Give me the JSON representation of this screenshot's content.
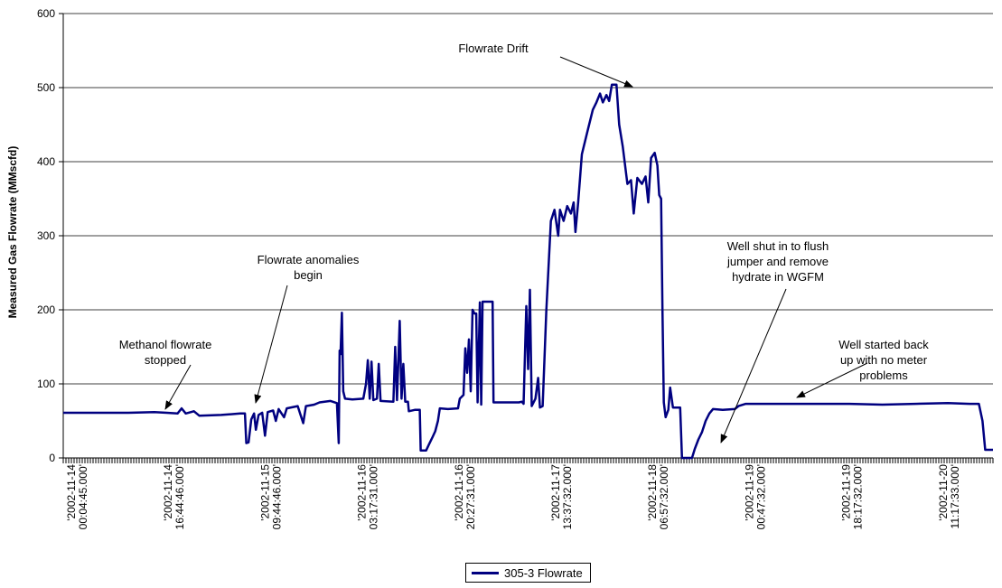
{
  "chart_data": {
    "type": "line",
    "title": "",
    "xlabel": "",
    "ylabel": "Measured Gas Flowrate (MMscfd)",
    "ylim": [
      0,
      600
    ],
    "yticks": [
      "0",
      "100",
      "200",
      "300",
      "400",
      "500",
      "600"
    ],
    "xlim": [
      "2002-11-14 00:04:45",
      "2002-11-21 02:15:00"
    ],
    "xtick_labels": [
      [
        "'2002-11-14",
        "00:04:45.000'"
      ],
      [
        "'2002-11-14",
        "16:44:46.000'"
      ],
      [
        "'2002-11-15",
        "09:44:46.000'"
      ],
      [
        "'2002-11-16",
        "03:17:31.000'"
      ],
      [
        "'2002-11-16",
        "20:27:31.000'"
      ],
      [
        "'2002-11-17",
        "13:37:32.000'"
      ],
      [
        "'2002-11-18",
        "06:57:32.000'"
      ],
      [
        "'2002-11-19",
        "00:47:32.000'"
      ],
      [
        "'2002-11-19",
        "18:17:32.000'"
      ],
      [
        "'2002-11-20",
        "11:17:33.000'"
      ]
    ],
    "grid": "horizontal",
    "legend": "bottom-center",
    "color": "#000080",
    "series": [
      {
        "name": "305-3 Flowrate",
        "points": [
          [
            "2002-11-14 00:04:45",
            61
          ],
          [
            "2002-11-14 06:00",
            61
          ],
          [
            "2002-11-14 12:00",
            61
          ],
          [
            "2002-11-14 16:44:46",
            62
          ],
          [
            "2002-11-14 19:00",
            61
          ],
          [
            "2002-11-14 21:00",
            60
          ],
          [
            "2002-11-14 21:45",
            67
          ],
          [
            "2002-11-14 22:30",
            60
          ],
          [
            "2002-11-15 00:00",
            63
          ],
          [
            "2002-11-15 01:00",
            57
          ],
          [
            "2002-11-15 05:00",
            58
          ],
          [
            "2002-11-15 08:30",
            60
          ],
          [
            "2002-11-15 09:20",
            60
          ],
          [
            "2002-11-15 09:35",
            20
          ],
          [
            "2002-11-15 10:00",
            21
          ],
          [
            "2002-11-15 10:30",
            52
          ],
          [
            "2002-11-15 11:00",
            60
          ],
          [
            "2002-11-15 11:20",
            38
          ],
          [
            "2002-11-15 11:50",
            58
          ],
          [
            "2002-11-15 12:30",
            61
          ],
          [
            "2002-11-15 13:00",
            30
          ],
          [
            "2002-11-15 13:30",
            62
          ],
          [
            "2002-11-15 14:30",
            64
          ],
          [
            "2002-11-15 15:00",
            50
          ],
          [
            "2002-11-15 15:30",
            66
          ],
          [
            "2002-11-15 16:30",
            55
          ],
          [
            "2002-11-15 17:00",
            67
          ],
          [
            "2002-11-15 19:00",
            70
          ],
          [
            "2002-11-15 20:00",
            47
          ],
          [
            "2002-11-15 20:30",
            70
          ],
          [
            "2002-11-15 22:00",
            72
          ],
          [
            "2002-11-15 23:00",
            75
          ],
          [
            "2002-11-16 01:00",
            77
          ],
          [
            "2002-11-16 02:10",
            74
          ],
          [
            "2002-11-16 02:30",
            20
          ],
          [
            "2002-11-16 02:40",
            145
          ],
          [
            "2002-11-16 02:50",
            140
          ],
          [
            "2002-11-16 03:05",
            196
          ],
          [
            "2002-11-16 03:20",
            90
          ],
          [
            "2002-11-16 03:40",
            80
          ],
          [
            "2002-11-16 05:00",
            79
          ],
          [
            "2002-11-16 07:00",
            80
          ],
          [
            "2002-11-16 07:30",
            100
          ],
          [
            "2002-11-16 07:50",
            132
          ],
          [
            "2002-11-16 08:10",
            80
          ],
          [
            "2002-11-16 08:30",
            130
          ],
          [
            "2002-11-16 08:50",
            78
          ],
          [
            "2002-11-16 09:30",
            80
          ],
          [
            "2002-11-16 09:50",
            127
          ],
          [
            "2002-11-16 10:10",
            77
          ],
          [
            "2002-11-16 12:30",
            76
          ],
          [
            "2002-11-16 12:50",
            150
          ],
          [
            "2002-11-16 13:10",
            78
          ],
          [
            "2002-11-16 13:40",
            185
          ],
          [
            "2002-11-16 14:00",
            80
          ],
          [
            "2002-11-16 14:20",
            127
          ],
          [
            "2002-11-16 14:40",
            76
          ],
          [
            "2002-11-16 15:10",
            76
          ],
          [
            "2002-11-16 15:20",
            63
          ],
          [
            "2002-11-16 16:30",
            65
          ],
          [
            "2002-11-16 17:20",
            65
          ],
          [
            "2002-11-16 17:30",
            10
          ],
          [
            "2002-11-16 18:30",
            10
          ],
          [
            "2002-11-16 19:00",
            18
          ],
          [
            "2002-11-16 19:40",
            28
          ],
          [
            "2002-11-16 20:10",
            36
          ],
          [
            "2002-11-16 20:40",
            50
          ],
          [
            "2002-11-16 21:00",
            67
          ],
          [
            "2002-11-16 22:30",
            66
          ],
          [
            "2002-11-17 00:20",
            67
          ],
          [
            "2002-11-17 00:40",
            80
          ],
          [
            "2002-11-17 01:20",
            85
          ],
          [
            "2002-11-17 01:40",
            148
          ],
          [
            "2002-11-17 02:00",
            115
          ],
          [
            "2002-11-17 02:20",
            160
          ],
          [
            "2002-11-17 02:40",
            90
          ],
          [
            "2002-11-17 03:00",
            200
          ],
          [
            "2002-11-17 03:20",
            195
          ],
          [
            "2002-11-17 03:40",
            195
          ],
          [
            "2002-11-17 03:55",
            75
          ],
          [
            "2002-11-17 04:20",
            210
          ],
          [
            "2002-11-17 04:35",
            72
          ],
          [
            "2002-11-17 04:50",
            211
          ],
          [
            "2002-11-17 06:40",
            211
          ],
          [
            "2002-11-17 06:50",
            75
          ],
          [
            "2002-11-17 09:00",
            75
          ],
          [
            "2002-11-17 11:30",
            75
          ],
          [
            "2002-11-17 12:00",
            76
          ],
          [
            "2002-11-17 12:20",
            73
          ],
          [
            "2002-11-17 12:50",
            205
          ],
          [
            "2002-11-17 13:10",
            120
          ],
          [
            "2002-11-17 13:30",
            227
          ],
          [
            "2002-11-17 13:50",
            70
          ],
          [
            "2002-11-17 14:30",
            80
          ],
          [
            "2002-11-17 15:00",
            108
          ],
          [
            "2002-11-17 15:20",
            68
          ],
          [
            "2002-11-17 15:50",
            70
          ],
          [
            "2002-11-17 16:30",
            200
          ],
          [
            "2002-11-17 17:20",
            320
          ],
          [
            "2002-11-17 18:00",
            335
          ],
          [
            "2002-11-17 18:40",
            300
          ],
          [
            "2002-11-17 19:00",
            335
          ],
          [
            "2002-11-17 19:40",
            320
          ],
          [
            "2002-11-17 20:20",
            340
          ],
          [
            "2002-11-17 21:00",
            330
          ],
          [
            "2002-11-17 21:30",
            345
          ],
          [
            "2002-11-17 21:50",
            305
          ],
          [
            "2002-11-17 22:20",
            345
          ],
          [
            "2002-11-17 23:00",
            410
          ],
          [
            "2002-11-18 00:00",
            440
          ],
          [
            "2002-11-18 01:00",
            470
          ],
          [
            "2002-11-18 01:40",
            480
          ],
          [
            "2002-11-18 02:20",
            492
          ],
          [
            "2002-11-18 02:50",
            480
          ],
          [
            "2002-11-18 03:30",
            490
          ],
          [
            "2002-11-18 04:00",
            482
          ],
          [
            "2002-11-18 04:30",
            504
          ],
          [
            "2002-11-18 05:20",
            504
          ],
          [
            "2002-11-18 05:50",
            450
          ],
          [
            "2002-11-18 06:30",
            420
          ],
          [
            "2002-11-18 07:20",
            370
          ],
          [
            "2002-11-18 08:00",
            375
          ],
          [
            "2002-11-18 08:30",
            330
          ],
          [
            "2002-11-18 09:10",
            378
          ],
          [
            "2002-11-18 10:00",
            370
          ],
          [
            "2002-11-18 10:40",
            380
          ],
          [
            "2002-11-18 11:10",
            345
          ],
          [
            "2002-11-18 11:40",
            405
          ],
          [
            "2002-11-18 12:20",
            412
          ],
          [
            "2002-11-18 12:50",
            395
          ],
          [
            "2002-11-18 13:10",
            355
          ],
          [
            "2002-11-18 13:30",
            350
          ],
          [
            "2002-11-18 13:45",
            200
          ],
          [
            "2002-11-18 14:00",
            75
          ],
          [
            "2002-11-18 14:20",
            55
          ],
          [
            "2002-11-18 14:50",
            65
          ],
          [
            "2002-11-18 15:10",
            95
          ],
          [
            "2002-11-18 15:40",
            68
          ],
          [
            "2002-11-18 17:00",
            68
          ],
          [
            "2002-11-18 17:20",
            0
          ],
          [
            "2002-11-18 19:10",
            0
          ],
          [
            "2002-11-18 19:40",
            12
          ],
          [
            "2002-11-18 20:20",
            25
          ],
          [
            "2002-11-18 21:00",
            35
          ],
          [
            "2002-11-18 21:40",
            50
          ],
          [
            "2002-11-18 22:20",
            60
          ],
          [
            "2002-11-18 23:00",
            66
          ],
          [
            "2002-11-19 00:47:32",
            65
          ],
          [
            "2002-11-19 03:00",
            66
          ],
          [
            "2002-11-19 03:40",
            70
          ],
          [
            "2002-11-19 05:00",
            73
          ],
          [
            "2002-11-19 12:00",
            73
          ],
          [
            "2002-11-19 18:17:32",
            73
          ],
          [
            "2002-11-20 00:00",
            73
          ],
          [
            "2002-11-20 06:00",
            72
          ],
          [
            "2002-11-20 12:00",
            73
          ],
          [
            "2002-11-20 18:00",
            74
          ],
          [
            "2002-11-20 22:00",
            73
          ],
          [
            "2002-11-20 23:40",
            73
          ],
          [
            "2002-11-21 00:20",
            50
          ],
          [
            "2002-11-21 00:50",
            11
          ],
          [
            "2002-11-21 02:15",
            11
          ]
        ]
      }
    ],
    "annotations": [
      {
        "lines": [
          "Methanol flowrate",
          "stopped"
        ],
        "point_at": [
          "2002-11-14 16:44:46",
          62
        ]
      },
      {
        "lines": [
          "Flowrate anomalies",
          "begin"
        ],
        "point_at": [
          "2002-11-15 09:44:46",
          60
        ]
      },
      {
        "lines": [
          "Flowrate Drift"
        ],
        "point_at": [
          "2002-11-18 04:30",
          504
        ]
      },
      {
        "lines": [
          "Well shut in to flush",
          "jumper and remove",
          "hydrate in WGFM"
        ],
        "point_at": [
          "2002-11-18 17:20",
          0
        ]
      },
      {
        "lines": [
          "Well started back",
          "up with no meter",
          "problems"
        ],
        "point_at": [
          "2002-11-19 05:00",
          73
        ]
      }
    ]
  }
}
